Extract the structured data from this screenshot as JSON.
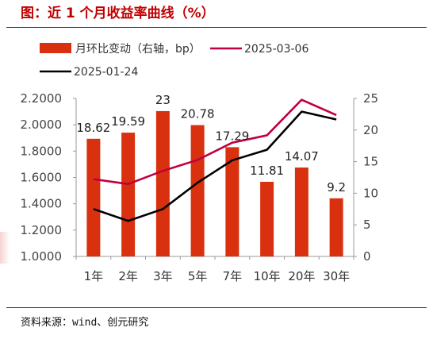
{
  "header": {
    "title": "图：近 1 个月收益率曲线（%）"
  },
  "footer": {
    "source": "资料来源：wind、创元研究"
  },
  "chart_data": {
    "type": "bar",
    "categories": [
      "1年",
      "2年",
      "3年",
      "5年",
      "7年",
      "10年",
      "20年",
      "30年"
    ],
    "series": [
      {
        "name": "月环比变动（右轴，bp）",
        "type": "bar",
        "axis": "right",
        "color": "#d9310f",
        "values": [
          18.62,
          19.59,
          23,
          20.78,
          17.29,
          11.81,
          14.07,
          9.2
        ],
        "labels": [
          "18.62",
          "19.59",
          "23",
          "20.78",
          "17.29",
          "11.81",
          "14.07",
          "9.2"
        ]
      },
      {
        "name": "2025-03-06",
        "type": "line",
        "axis": "left",
        "color": "#c0003c",
        "values": [
          1.587,
          1.55,
          1.65,
          1.733,
          1.864,
          1.92,
          2.19,
          2.074
        ]
      },
      {
        "name": "2025-01-24",
        "type": "line",
        "axis": "left",
        "color": "#000000",
        "values": [
          1.36,
          1.27,
          1.36,
          1.56,
          1.73,
          1.81,
          2.1,
          2.04
        ]
      }
    ],
    "y_left": {
      "ticks": [
        "2.2000",
        "2.0000",
        "1.8000",
        "1.6000",
        "1.4000",
        "1.2000",
        "1.0000"
      ],
      "ylim": [
        1.0,
        2.2
      ]
    },
    "y_right": {
      "ticks": [
        "25",
        "20",
        "15",
        "10",
        "5",
        "0"
      ],
      "ylim": [
        0,
        25
      ]
    },
    "legend_position": "top",
    "grid": false
  }
}
